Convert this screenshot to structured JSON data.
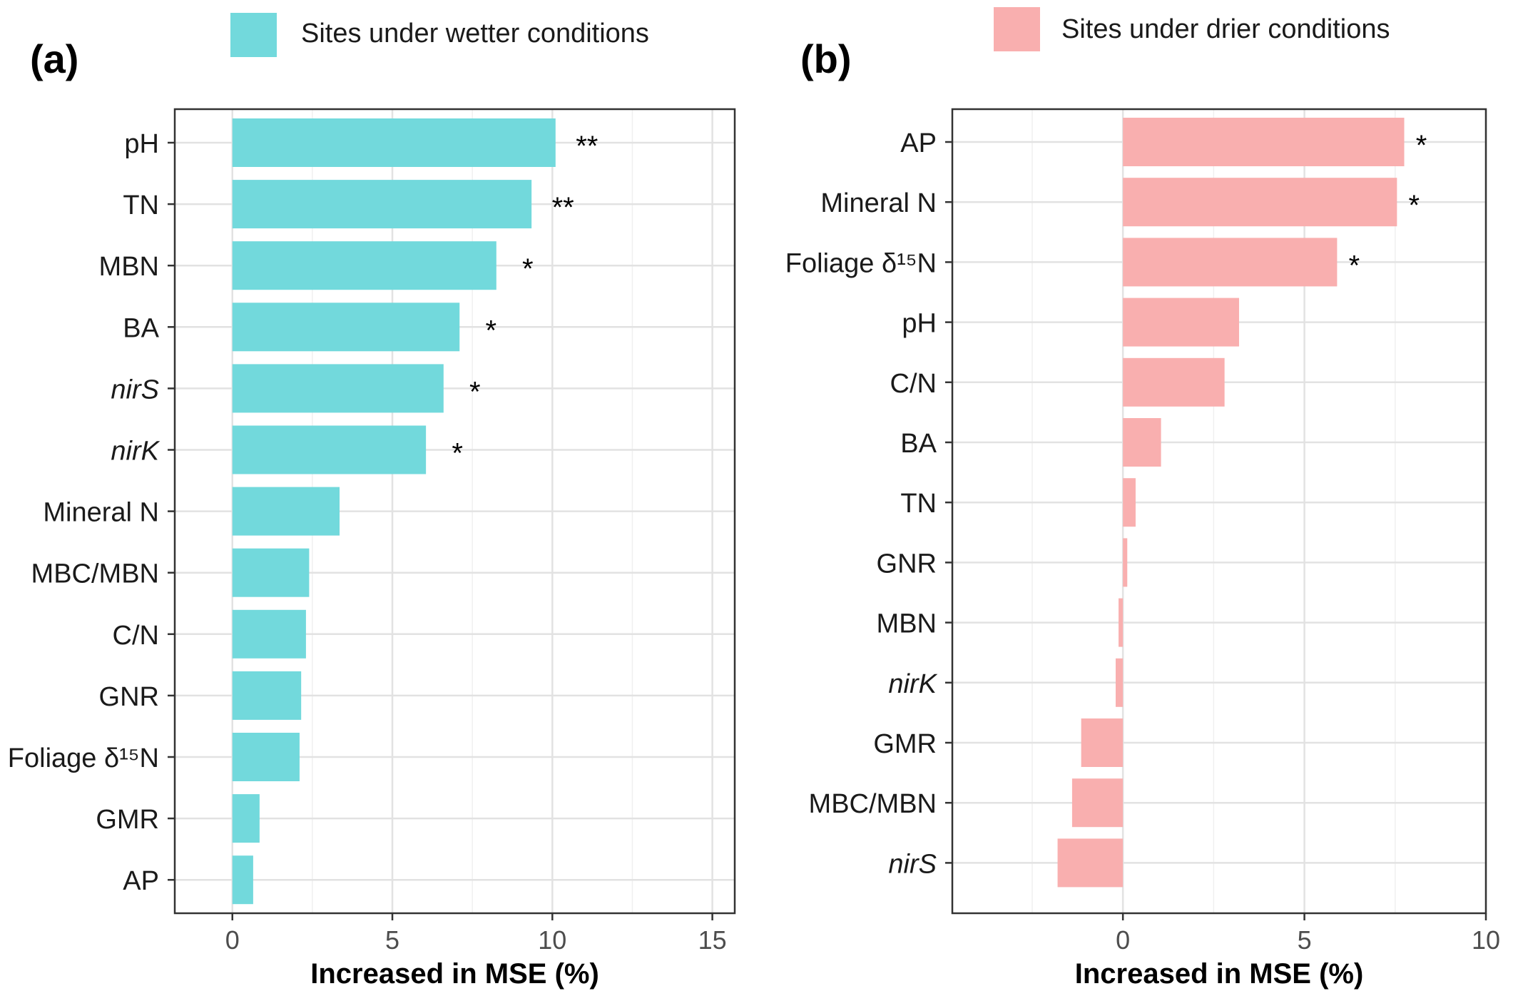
{
  "chart_data": [
    {
      "type": "bar",
      "orientation": "horizontal",
      "panel_label": "(a)",
      "legend_label": "Sites under wetter conditions",
      "color": "#72D9DC",
      "categories": [
        "pH",
        "TN",
        "MBN",
        "BA",
        "nirS",
        "nirK",
        "Mineral N",
        "MBC/MBN",
        "C/N",
        "GNR",
        "Foliage δ¹⁵N",
        "GMR",
        "AP"
      ],
      "italic": [
        false,
        false,
        false,
        false,
        true,
        true,
        false,
        false,
        false,
        false,
        false,
        false,
        false
      ],
      "values": [
        10.1,
        9.35,
        8.25,
        7.1,
        6.6,
        6.05,
        3.35,
        2.4,
        2.3,
        2.15,
        2.1,
        0.85,
        0.65
      ],
      "significance": [
        "**",
        "**",
        "*",
        "*",
        "*",
        "*",
        "",
        "",
        "",
        "",
        "",
        "",
        ""
      ],
      "xlim": [
        -1.8,
        15.7
      ],
      "xticks": [
        0,
        5,
        10,
        15
      ],
      "xlabel": "Increased in MSE (%)",
      "grid": true
    },
    {
      "type": "bar",
      "orientation": "horizontal",
      "panel_label": "(b)",
      "legend_label": "Sites under drier conditions",
      "color": "#F9AFAF",
      "categories": [
        "AP",
        "Mineral N",
        "Foliage δ¹⁵N",
        "pH",
        "C/N",
        "BA",
        "TN",
        "GNR",
        "MBN",
        "nirK",
        "GMR",
        "MBC/MBN",
        "nirS"
      ],
      "italic": [
        false,
        false,
        false,
        false,
        false,
        false,
        false,
        false,
        false,
        true,
        false,
        false,
        true
      ],
      "values": [
        7.75,
        7.55,
        5.9,
        3.2,
        2.8,
        1.05,
        0.35,
        0.12,
        -0.12,
        -0.2,
        -1.15,
        -1.4,
        -1.8
      ],
      "significance": [
        "*",
        "*",
        "*",
        "",
        "",
        "",
        "",
        "",
        "",
        "",
        "",
        "",
        ""
      ],
      "xlim": [
        -4.7,
        10.0
      ],
      "xticks": [
        0,
        5,
        10
      ],
      "xlabel": "Increased in MSE (%)",
      "grid": true
    }
  ]
}
